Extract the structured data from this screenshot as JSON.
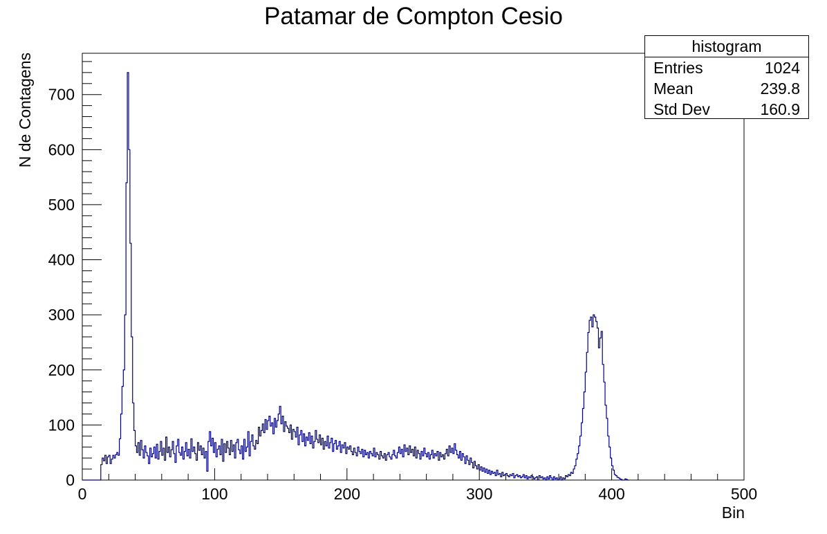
{
  "chart_data": {
    "type": "histogram",
    "title": "Patamar de Compton Cesio",
    "xlabel": "Bin",
    "ylabel": "N de Contagens",
    "xlim": [
      0,
      500
    ],
    "ylim": [
      0,
      775
    ],
    "x_ticks": [
      0,
      100,
      200,
      300,
      400,
      500
    ],
    "y_ticks": [
      0,
      100,
      200,
      300,
      400,
      500,
      600,
      700
    ],
    "grid": false,
    "line_color": "#00007f",
    "bin_width": 1,
    "bins_start": 0,
    "counts": [
      0,
      0,
      0,
      0,
      0,
      0,
      0,
      0,
      0,
      0,
      0,
      0,
      0,
      0,
      28,
      40,
      35,
      45,
      30,
      42,
      45,
      30,
      38,
      45,
      40,
      46,
      50,
      45,
      75,
      120,
      170,
      200,
      300,
      540,
      740,
      600,
      430,
      260,
      140,
      90,
      62,
      50,
      68,
      45,
      72,
      55,
      40,
      62,
      50,
      44,
      30,
      58,
      42,
      48,
      60,
      40,
      65,
      38,
      52,
      70,
      45,
      58,
      36,
      78,
      50,
      60,
      42,
      55,
      70,
      48,
      32,
      62,
      74,
      50,
      45,
      60,
      38,
      52,
      68,
      44,
      56,
      40,
      75,
      52,
      60,
      48,
      36,
      68,
      54,
      62,
      46,
      58,
      40,
      52,
      16,
      70,
      88,
      62,
      76,
      50,
      68,
      42,
      56,
      62,
      46,
      74,
      34,
      66,
      50,
      70,
      58,
      46,
      72,
      52,
      64,
      40,
      68,
      74,
      55,
      48,
      62,
      38,
      74,
      52,
      60,
      88,
      44,
      70,
      82,
      62,
      56,
      72,
      66,
      96,
      80,
      90,
      102,
      86,
      110,
      92,
      108,
      116,
      98,
      104,
      84,
      112,
      96,
      108,
      120,
      134,
      102,
      116,
      88,
      106,
      98,
      94,
      86,
      100,
      74,
      92,
      88,
      78,
      96,
      64,
      82,
      90,
      70,
      84,
      62,
      78,
      72,
      86,
      66,
      80,
      58,
      70,
      90,
      74,
      68,
      82,
      64,
      76,
      56,
      70,
      62,
      80,
      58,
      68,
      76,
      52,
      66,
      72,
      56,
      62,
      70,
      50,
      64,
      58,
      68,
      48,
      60,
      56,
      62,
      52,
      46,
      58,
      50,
      44,
      60,
      52,
      48,
      56,
      42,
      54,
      46,
      50,
      40,
      52,
      48,
      44,
      58,
      42,
      50,
      46,
      38,
      52,
      44,
      40,
      48,
      36,
      46,
      50,
      42,
      38,
      46,
      54,
      44,
      40,
      50,
      60,
      48,
      56,
      42,
      64,
      52,
      58,
      46,
      62,
      50,
      56,
      44,
      60,
      40,
      54,
      48,
      38,
      52,
      44,
      58,
      48,
      42,
      50,
      38,
      46,
      54,
      40,
      48,
      44,
      52,
      36,
      50,
      42,
      46,
      38,
      48,
      56,
      44,
      62,
      50,
      58,
      48,
      66,
      54,
      46,
      40,
      52,
      36,
      48,
      42,
      30,
      44,
      36,
      28,
      40,
      32,
      22,
      34,
      26,
      20,
      28,
      18,
      24,
      16,
      22,
      14,
      20,
      12,
      18,
      10,
      16,
      12,
      14,
      8,
      18,
      10,
      12,
      6,
      14,
      8,
      10,
      12,
      8,
      6,
      10,
      8,
      12,
      4,
      8,
      10,
      6,
      8,
      4,
      6,
      10,
      4,
      8,
      2,
      6,
      4,
      8,
      6,
      2,
      4,
      6,
      0,
      8,
      4,
      6,
      2,
      4,
      0,
      6,
      2,
      8,
      4,
      0,
      6,
      2,
      4,
      0,
      2,
      6,
      0,
      4,
      2,
      8,
      6,
      10,
      8,
      14,
      12,
      20,
      26,
      38,
      48,
      62,
      80,
      104,
      130,
      160,
      196,
      232,
      268,
      290,
      296,
      278,
      300,
      296,
      288,
      276,
      240,
      258,
      270,
      210,
      178,
      136,
      112,
      80,
      60,
      40,
      26,
      18,
      10,
      8,
      5,
      4,
      2,
      1,
      0,
      0,
      2,
      1,
      0
    ],
    "legend_position": "top-right",
    "stats_box": {
      "title": "histogram",
      "rows": [
        {
          "label": "Entries",
          "value": "1024"
        },
        {
          "label": "Mean",
          "value": "239.8"
        },
        {
          "label": "Std Dev",
          "value": "160.9"
        }
      ]
    }
  }
}
